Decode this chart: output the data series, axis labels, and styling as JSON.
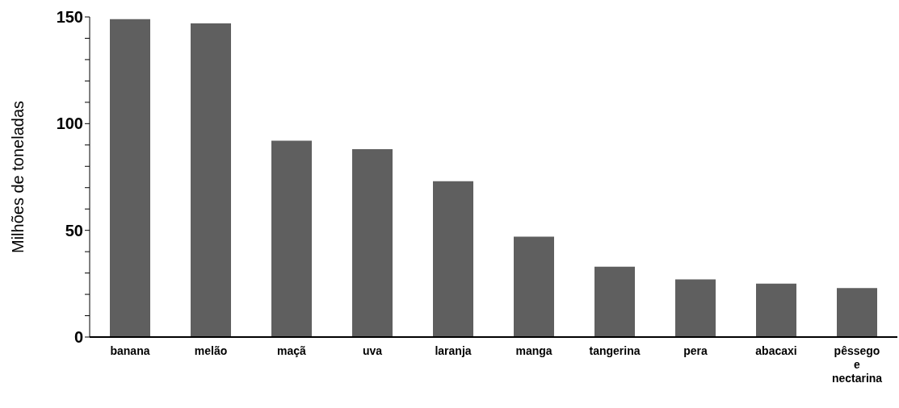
{
  "chart_data": {
    "type": "bar",
    "ylabel": "Milhões de toneladas",
    "categories": [
      "banana",
      "melão",
      "maçã",
      "uva",
      "laranja",
      "manga",
      "tangerina",
      "pera",
      "abacaxi",
      "pêssego e nectarina"
    ],
    "values": [
      149,
      147,
      92,
      88,
      73,
      47,
      33,
      27,
      25,
      23
    ],
    "color": "#5f5f5f",
    "ylim": [
      0,
      150
    ],
    "yticks": [
      0,
      {
        "value": 10,
        "label": null
      },
      {
        "value": 20,
        "label": null
      },
      {
        "value": 30,
        "label": null
      },
      {
        "value": 40,
        "label": null
      },
      50,
      {
        "value": 60,
        "label": null
      },
      {
        "value": 70,
        "label": null
      },
      {
        "value": 80,
        "label": null
      },
      {
        "value": 90,
        "label": null
      },
      100,
      {
        "value": 110,
        "label": null
      },
      {
        "value": 120,
        "label": null
      },
      {
        "value": 130,
        "label": null
      },
      {
        "value": 140,
        "label": null
      },
      150
    ],
    "grid": false,
    "legend": false
  }
}
